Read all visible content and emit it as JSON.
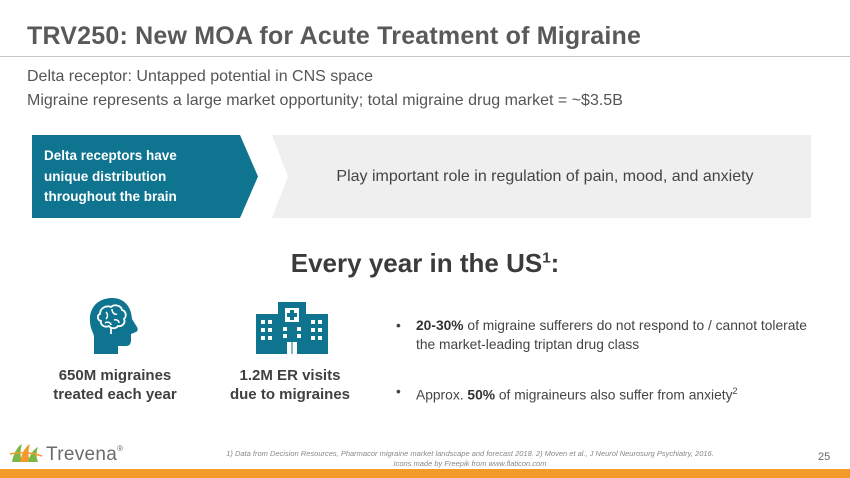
{
  "slide": {
    "title": "TRV250: New MOA for Acute Treatment of Migraine",
    "subtitle_1": "Delta receptor: Untapped potential in CNS space",
    "subtitle_2": "Migraine represents a large market opportunity; total migraine drug market = ~$3.5B"
  },
  "banner": {
    "box_line_1": "Delta receptors have",
    "box_line_2": "unique distribution",
    "box_line_3": "throughout the brain",
    "text": "Play important role in regulation of pain, mood, and anxiety",
    "box_color": "#0e7490",
    "bg_color": "#efefef"
  },
  "section": {
    "heading": "Every year in the US",
    "heading_sup": "1",
    "heading_suffix": ":"
  },
  "stats": [
    {
      "icon": "brain-head-icon",
      "line_1": "650M migraines",
      "line_2": "treated each year"
    },
    {
      "icon": "hospital-icon",
      "line_1": "1.2M ER visits",
      "line_2": "due to migraines"
    }
  ],
  "bullets": [
    {
      "bold": "20-30%",
      "text": " of migraine sufferers do not respond to / cannot tolerate the market-leading triptan drug class",
      "sup": ""
    },
    {
      "prefix": "Approx. ",
      "bold": "50%",
      "text": " of migraineurs also suffer from anxiety",
      "sup": "2"
    }
  ],
  "bullet_glyph": "•",
  "footnote_1": "1) Data from Decision Resources, Pharmacor migraine market landscape and forecast 2018. 2) Moven et al., J Neurol Neurosurg Psychiatry, 2016.",
  "footnote_2": "Icons made by Freepik from www.flaticon.com",
  "page_number": "25",
  "logo": {
    "text": "Trevena",
    "mark": "®"
  },
  "colors": {
    "accent_teal": "#0e7490",
    "orange_bar": "#f39a2b",
    "logo_green": "#7ab648",
    "logo_orange": "#f39a2b"
  }
}
